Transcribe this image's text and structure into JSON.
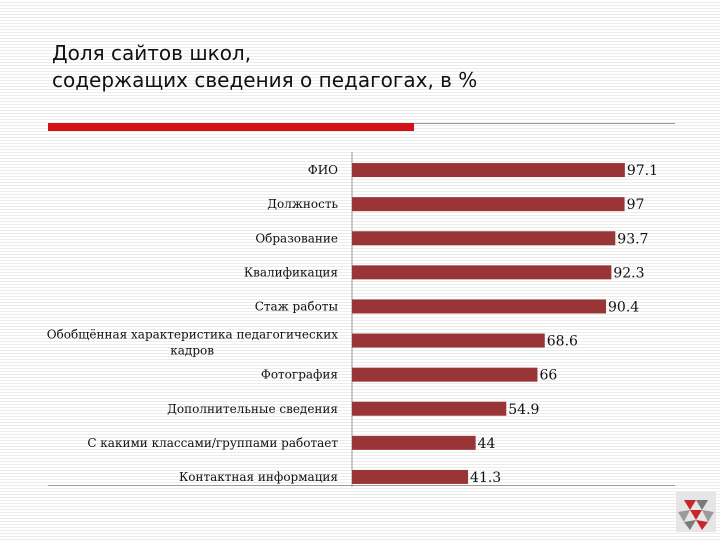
{
  "title": {
    "line1": "Доля сайтов школ,",
    "line2": "содержащих сведения о педагогах, в %"
  },
  "colors": {
    "bar": "#993537",
    "accent": "#d31218",
    "rule": "#9a9a9a"
  },
  "chart_data": {
    "type": "bar",
    "orientation": "horizontal",
    "categories": [
      "ФИО",
      "Должность",
      "Образование",
      "Квалификация",
      "Стаж работы",
      "Обобщённая характеристика педагогических кадров",
      "Фотография",
      "Дополнительные сведения",
      "С какими классами/группами работает",
      "Контактная информация"
    ],
    "values": [
      97.1,
      97,
      93.7,
      92.3,
      90.4,
      68.6,
      66,
      54.9,
      44,
      41.3
    ],
    "value_labels": [
      "97.1",
      "97",
      "93.7",
      "92.3",
      "90.4",
      "68.6",
      "66",
      "54.9",
      "44",
      "41.3"
    ],
    "xlim": [
      0,
      100
    ],
    "grid": false,
    "legend": "none"
  }
}
